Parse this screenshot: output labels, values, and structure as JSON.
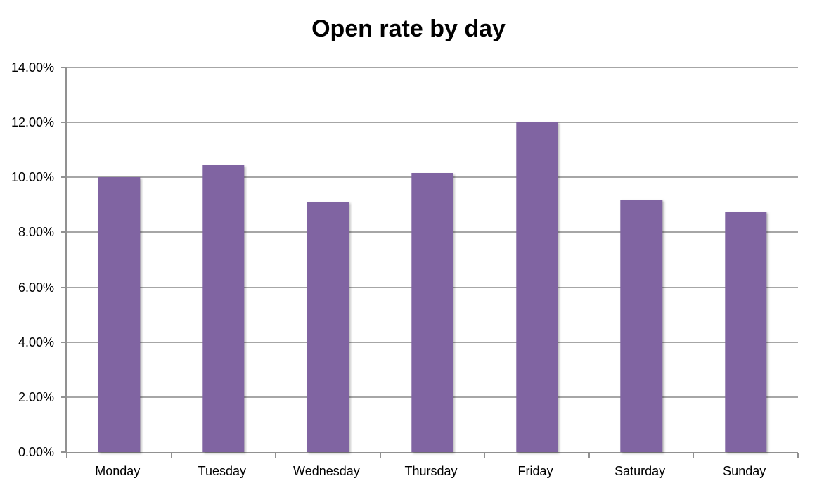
{
  "chart_data": {
    "type": "bar",
    "title": "Open rate by day",
    "categories": [
      "Monday",
      "Tuesday",
      "Wednesday",
      "Thursday",
      "Friday",
      "Saturday",
      "Sunday"
    ],
    "values": [
      10.0,
      10.45,
      9.1,
      10.15,
      12.02,
      9.18,
      8.75
    ],
    "xlabel": "",
    "ylabel": "",
    "ylim": [
      0,
      14
    ],
    "ytick_step": 2,
    "ytick_decimals": 2,
    "ytick_suffix": "%",
    "grid": true,
    "legend_position": "none",
    "bar_gap_ratio": 0.4,
    "colors": {
      "bar": "#8064A2",
      "gridline": "#A6A6A6",
      "axis": "#919191",
      "text": "#000000",
      "background": "#FFFFFF"
    }
  }
}
